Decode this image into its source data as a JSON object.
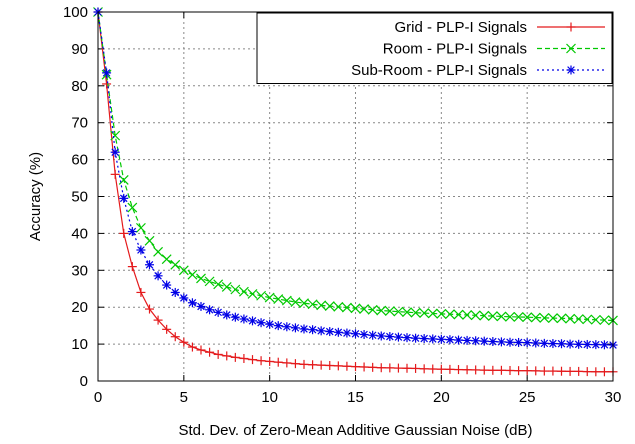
{
  "chart_data": {
    "type": "line",
    "xlabel": "Std. Dev. of Zero-Mean Additive Gaussian Noise (dB)",
    "ylabel": "Accuracy (%)",
    "xlim": [
      0,
      30
    ],
    "ylim": [
      0,
      100
    ],
    "xticks": [
      "0",
      "5",
      "10",
      "15",
      "20",
      "25",
      "30"
    ],
    "yticks": [
      "0",
      "10",
      "20",
      "30",
      "40",
      "50",
      "60",
      "70",
      "80",
      "90",
      "100"
    ],
    "grid": true,
    "legend_position": "top-right",
    "x": [
      0,
      0.5,
      1,
      1.5,
      2,
      2.5,
      3,
      3.5,
      4,
      4.5,
      5,
      5.5,
      6,
      6.5,
      7,
      7.5,
      8,
      8.5,
      9,
      9.5,
      10,
      10.5,
      11,
      11.5,
      12,
      12.5,
      13,
      13.5,
      14,
      14.5,
      15,
      15.5,
      16,
      16.5,
      17,
      17.5,
      18,
      18.5,
      19,
      19.5,
      20,
      20.5,
      21,
      21.5,
      22,
      22.5,
      23,
      23.5,
      24,
      24.5,
      25,
      25.5,
      26,
      26.5,
      27,
      27.5,
      28,
      28.5,
      29,
      29.5,
      30
    ],
    "series": [
      {
        "name": "Grid - PLP-I Signals",
        "color": "#e41a1c",
        "marker": "plus",
        "values": [
          100,
          80.5,
          56,
          40,
          31,
          24,
          19.5,
          16.5,
          14,
          12,
          10.5,
          9.2,
          8.4,
          7.8,
          7.2,
          6.8,
          6.4,
          6.1,
          5.8,
          5.5,
          5.3,
          5.1,
          4.9,
          4.7,
          4.5,
          4.4,
          4.3,
          4.2,
          4.1,
          4.0,
          3.9,
          3.8,
          3.7,
          3.6,
          3.55,
          3.5,
          3.45,
          3.4,
          3.3,
          3.25,
          3.2,
          3.15,
          3.1,
          3.05,
          3.0,
          2.95,
          2.9,
          2.9,
          2.85,
          2.8,
          2.8,
          2.75,
          2.7,
          2.7,
          2.65,
          2.6,
          2.6,
          2.55,
          2.5,
          2.5,
          2.5
        ]
      },
      {
        "name": "Room - PLP-I Signals",
        "color": "#00c800",
        "marker": "cross",
        "values": [
          100,
          83,
          66.5,
          54.5,
          47,
          41.5,
          38,
          35,
          33,
          31.5,
          30,
          28.8,
          27.8,
          27,
          26.2,
          25.5,
          24.8,
          24.2,
          23.6,
          23.1,
          22.6,
          22.2,
          21.8,
          21.4,
          21.1,
          20.8,
          20.5,
          20.3,
          20.1,
          19.9,
          19.7,
          19.5,
          19.3,
          19.1,
          18.95,
          18.8,
          18.65,
          18.5,
          18.4,
          18.3,
          18.2,
          18.1,
          18.0,
          17.9,
          17.8,
          17.7,
          17.6,
          17.5,
          17.4,
          17.35,
          17.3,
          17.2,
          17.1,
          17.05,
          17.0,
          16.9,
          16.8,
          16.7,
          16.6,
          16.5,
          16.4
        ]
      },
      {
        "name": "Sub-Room - PLP-I Signals",
        "color": "#0000e6",
        "marker": "star",
        "values": [
          100,
          83.5,
          62,
          49.5,
          40.5,
          35.5,
          31.5,
          28.5,
          26,
          24,
          22.5,
          21.2,
          20.2,
          19.3,
          18.6,
          17.9,
          17.3,
          16.8,
          16.3,
          15.8,
          15.4,
          15.0,
          14.7,
          14.4,
          14.1,
          13.9,
          13.6,
          13.4,
          13.2,
          13.0,
          12.8,
          12.6,
          12.4,
          12.2,
          12.05,
          11.9,
          11.75,
          11.6,
          11.5,
          11.4,
          11.3,
          11.2,
          11.1,
          11.0,
          10.9,
          10.8,
          10.7,
          10.6,
          10.5,
          10.45,
          10.4,
          10.3,
          10.2,
          10.15,
          10.1,
          10.0,
          9.95,
          9.9,
          9.85,
          9.8,
          9.75
        ]
      }
    ]
  }
}
